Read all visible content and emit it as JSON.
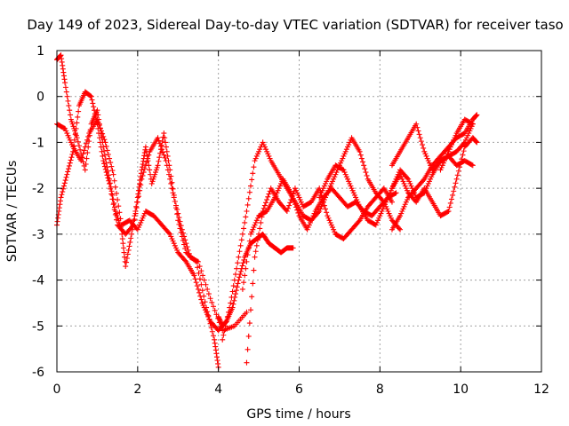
{
  "chart_data": {
    "type": "scatter",
    "title": "Day 149 of 2023, Sidereal Day-to-day VTEC variation (SDTVAR) for receiver taso",
    "xlabel": "GPS time / hours",
    "ylabel": "SDTVAR / TECUs",
    "xlim": [
      0,
      12
    ],
    "ylim": [
      -6,
      1
    ],
    "xticks": [
      "0",
      "2",
      "4",
      "6",
      "8",
      "10",
      "12"
    ],
    "yticks": [
      "1",
      "0",
      "-1",
      "-2",
      "-3",
      "-4",
      "-5",
      "-6"
    ],
    "grid": true,
    "marker": "plus",
    "color": "#ff0000",
    "series": [
      {
        "x": [
          0.0,
          0.1,
          0.2,
          0.35,
          0.5,
          0.7,
          0.85,
          1.0,
          1.15,
          1.3,
          1.45,
          1.6,
          1.7,
          1.85,
          2.0,
          2.1,
          2.2,
          2.35,
          2.5,
          2.65,
          2.8,
          3.0,
          3.2,
          3.45,
          3.7,
          3.9,
          4.0
        ],
        "y": [
          0.8,
          0.9,
          0.3,
          -0.5,
          -0.9,
          -1.6,
          -0.6,
          -0.3,
          -1.1,
          -1.8,
          -2.5,
          -2.9,
          -3.7,
          -3.0,
          -2.2,
          -1.6,
          -1.1,
          -1.9,
          -1.5,
          -0.8,
          -1.6,
          -2.7,
          -3.4,
          -3.6,
          -4.6,
          -5.3,
          -5.9
        ]
      },
      {
        "x": [
          0.0,
          0.2,
          0.4,
          0.6,
          0.8,
          1.0,
          1.2,
          1.4,
          1.6,
          1.8,
          2.0,
          2.2,
          2.4,
          2.6,
          2.8,
          3.0,
          3.2,
          3.4,
          3.6,
          3.8,
          4.0,
          4.2
        ],
        "y": [
          -0.6,
          -0.7,
          -1.1,
          -1.4,
          -0.8,
          -0.5,
          -1.0,
          -1.7,
          -2.8,
          -2.7,
          -2.9,
          -2.5,
          -2.6,
          -2.8,
          -3.0,
          -3.4,
          -3.6,
          -3.9,
          -4.5,
          -4.9,
          -5.1,
          -4.9
        ]
      },
      {
        "x": [
          0.0,
          0.1,
          0.25,
          0.4,
          0.55,
          0.7,
          0.85,
          1.0,
          1.15,
          1.3,
          1.5,
          1.7,
          1.9,
          2.1,
          2.3,
          2.5,
          2.7,
          2.9,
          3.1,
          3.3,
          3.5,
          3.8,
          4.1,
          4.4,
          4.7
        ],
        "y": [
          -2.8,
          -2.2,
          -1.7,
          -1.2,
          -0.2,
          0.1,
          0.0,
          -0.6,
          -1.4,
          -1.9,
          -2.8,
          -3.0,
          -2.8,
          -1.8,
          -1.2,
          -0.9,
          -1.4,
          -2.2,
          -2.9,
          -3.5,
          -3.6,
          -4.4,
          -5.1,
          -5.0,
          -4.7
        ]
      },
      {
        "x": [
          4.0,
          4.1,
          4.2,
          4.35,
          4.5,
          4.65,
          4.8,
          4.95,
          5.1,
          5.25,
          5.4,
          5.55,
          5.7,
          5.85
        ],
        "y": [
          -4.8,
          -5.0,
          -4.9,
          -4.6,
          -4.0,
          -3.5,
          -3.2,
          -3.1,
          -3.0,
          -3.2,
          -3.3,
          -3.4,
          -3.3,
          -3.3
        ]
      },
      {
        "x": [
          4.1,
          4.3,
          4.5,
          4.7,
          4.9,
          5.1,
          5.3,
          5.5,
          5.7,
          5.9,
          6.1,
          6.3,
          6.5,
          6.7,
          6.9,
          7.1,
          7.3,
          7.5,
          7.7,
          7.9,
          8.1,
          8.3,
          8.5
        ],
        "y": [
          -5.3,
          -4.5,
          -3.5,
          -2.5,
          -1.4,
          -1.0,
          -1.4,
          -1.7,
          -2.0,
          -2.3,
          -2.6,
          -2.7,
          -2.5,
          -2.1,
          -1.7,
          -1.3,
          -0.9,
          -1.2,
          -1.8,
          -2.1,
          -2.3,
          -2.7,
          -2.9
        ]
      },
      {
        "x": [
          4.6,
          4.8,
          5.0,
          5.2,
          5.4,
          5.6,
          5.8,
          6.0,
          6.2,
          6.4,
          6.6,
          6.8,
          7.0,
          7.2,
          7.4,
          7.6,
          7.8,
          8.0,
          8.2,
          8.4
        ],
        "y": [
          -4.2,
          -3.0,
          -2.6,
          -2.5,
          -2.2,
          -1.8,
          -2.1,
          -2.6,
          -2.9,
          -2.5,
          -2.2,
          -2.0,
          -2.2,
          -2.4,
          -2.3,
          -2.5,
          -2.6,
          -2.4,
          -2.2,
          -2.1
        ]
      },
      {
        "x": [
          4.7,
          4.9,
          5.1,
          5.3,
          5.5,
          5.7,
          5.9,
          6.1,
          6.3,
          6.5,
          6.7,
          6.9,
          7.1,
          7.3,
          7.5,
          7.7,
          7.9,
          8.1,
          8.3
        ],
        "y": [
          -5.8,
          -3.5,
          -2.5,
          -2.0,
          -2.3,
          -2.5,
          -2.0,
          -2.4,
          -2.3,
          -2.0,
          -2.6,
          -3.0,
          -3.1,
          -2.9,
          -2.7,
          -2.4,
          -2.2,
          -2.0,
          -2.3
        ]
      },
      {
        "x": [
          6.5,
          6.7,
          6.9,
          7.1,
          7.3,
          7.5,
          7.7,
          7.9,
          8.1,
          8.3,
          8.5,
          8.7,
          8.9,
          9.1,
          9.3,
          9.5,
          9.7,
          9.9,
          10.1,
          10.3
        ],
        "y": [
          -2.2,
          -1.8,
          -1.5,
          -1.6,
          -2.0,
          -2.4,
          -2.7,
          -2.8,
          -2.4,
          -2.0,
          -1.6,
          -1.8,
          -2.2,
          -2.1,
          -1.7,
          -1.4,
          -1.3,
          -1.2,
          -1.0,
          -0.6
        ]
      },
      {
        "x": [
          8.3,
          8.5,
          8.7,
          8.9,
          9.1,
          9.3,
          9.5,
          9.7,
          9.9,
          10.1,
          10.3,
          10.4
        ],
        "y": [
          -2.9,
          -2.6,
          -2.2,
          -2.0,
          -1.8,
          -1.5,
          -1.3,
          -1.1,
          -0.9,
          -0.8,
          -0.5,
          -0.4
        ]
      },
      {
        "x": [
          8.3,
          8.5,
          8.7,
          8.9,
          9.1,
          9.3,
          9.5,
          9.7,
          9.9,
          10.1,
          10.3
        ],
        "y": [
          -1.5,
          -1.2,
          -0.9,
          -0.6,
          -1.2,
          -1.6,
          -1.4,
          -1.3,
          -1.5,
          -1.4,
          -1.5
        ]
      },
      {
        "x": [
          8.3,
          8.5,
          8.7,
          8.9,
          9.1,
          9.3,
          9.5,
          9.7,
          9.9,
          10.1,
          10.3,
          10.4
        ],
        "y": [
          -2.0,
          -1.7,
          -2.1,
          -2.3,
          -2.0,
          -2.3,
          -2.6,
          -2.5,
          -1.8,
          -1.1,
          -0.9,
          -1.0
        ]
      },
      {
        "x": [
          9.5,
          9.7,
          9.9,
          10.1,
          10.3
        ],
        "y": [
          -1.6,
          -1.2,
          -0.8,
          -0.5,
          -0.6
        ]
      }
    ]
  }
}
